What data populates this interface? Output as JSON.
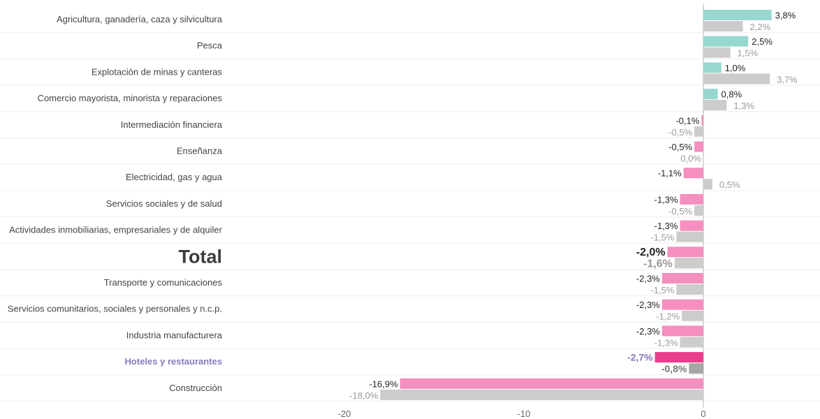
{
  "chart_data": {
    "type": "bar",
    "orientation": "horizontal",
    "categories": [
      "Agricultura, ganadería, caza y silvicultura",
      "Pesca",
      "Explotación de minas y canteras",
      "Comercio mayorista, minorista y reparaciones",
      "Intermediación financiera",
      "Enseñanza",
      "Electricidad, gas y agua",
      "Servicios sociales y de salud",
      "Actividades inmobiliarias, empresariales y de alquiler",
      "Total",
      "Transporte y comunicaciones",
      "Servicios comunitarios, sociales y personales y n.c.p.",
      "Industria manufacturera",
      "Hoteles y restaurantes",
      "Construcción"
    ],
    "series": [
      {
        "values": [
          3.8,
          2.5,
          1.0,
          0.8,
          -0.1,
          -0.5,
          -1.1,
          -1.3,
          -1.3,
          -2.0,
          -2.3,
          -2.3,
          -2.3,
          -2.7,
          -16.9
        ],
        "labels": [
          "3,8%",
          "2,5%",
          "1,0%",
          "0,8%",
          "-0,1%",
          "-0,5%",
          "-1,1%",
          "-1,3%",
          "-1,3%",
          "-2,0%",
          "-2,3%",
          "-2,3%",
          "-2,3%",
          "-2,7%",
          "-16,9%"
        ]
      },
      {
        "values": [
          2.2,
          1.5,
          3.7,
          1.3,
          -0.5,
          0.0,
          0.5,
          -0.5,
          -1.5,
          -1.6,
          -1.5,
          -1.2,
          -1.3,
          -0.8,
          -18.0
        ],
        "labels": [
          "2,2%",
          "1,5%",
          "3,7%",
          "1,3%",
          "-0,5%",
          "0,0%",
          "0,5%",
          "-0,5%",
          "-1,5%",
          "-1,6%",
          "-1,5%",
          "-1,2%",
          "-1,3%",
          "-0,8%",
          "-18,0%"
        ]
      }
    ],
    "xlim": [
      -20,
      6.5
    ],
    "xticks": [
      "-20",
      "-10",
      "0"
    ],
    "xtick_values": [
      -20,
      -10,
      0
    ],
    "grid": true,
    "highlight": {
      "total_category": "Total",
      "emphasis_category": "Hoteles y restaurantes"
    },
    "colors": {
      "series1_positive": "#97d7d0",
      "series1_negative": "#f48fbf",
      "series1_emphasis": "#e83e8c",
      "series2": "#cccccc",
      "series2_emphasis": "#a6a6a6",
      "label_series1": "#222222",
      "label_series2": "#999999",
      "label_emphasis": "#8b79bf",
      "category_label": "#444444",
      "total_label": "#3c3c3c",
      "grid": "#eeeeee",
      "zero_line": "#b5b5b5"
    }
  }
}
